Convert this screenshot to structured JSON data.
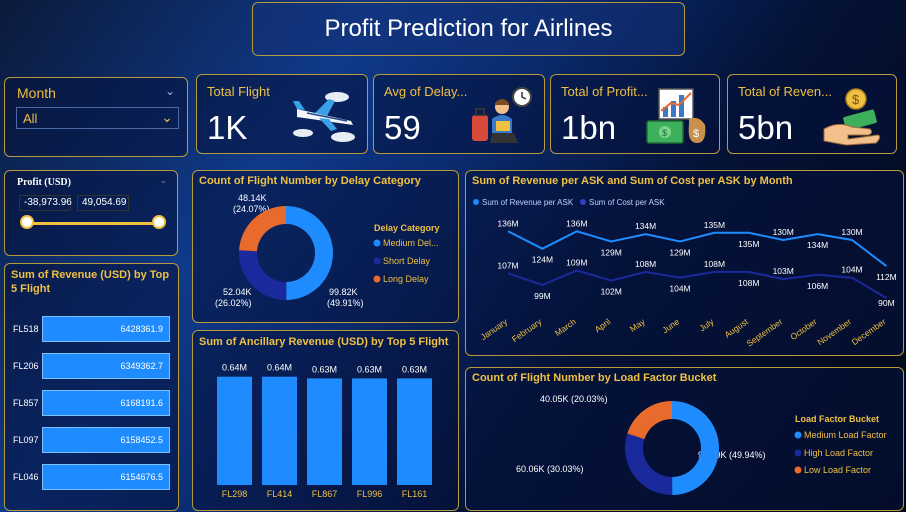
{
  "title": "Profit Prediction for Airlines",
  "month_slicer": {
    "label": "Month",
    "selected": "All"
  },
  "kpis": [
    {
      "title": "Total Flight",
      "value": "1K",
      "icon": "airplane-icon"
    },
    {
      "title": "Avg of Delay...",
      "value": "59",
      "icon": "waiting-passenger-icon"
    },
    {
      "title": "Total of Profit...",
      "value": "1bn",
      "icon": "profit-chart-money-icon"
    },
    {
      "title": "Total of Reven...",
      "value": "5bn",
      "icon": "hand-money-icon"
    }
  ],
  "profit_slicer": {
    "label": "Profit (USD)",
    "min": "-38,973.96",
    "max": "49,054.69"
  },
  "revenue_top5": {
    "title": "Sum of Revenue (USD) by Top 5 Flight",
    "rows": [
      {
        "flight": "FL518",
        "value": "6428361.9",
        "num": 6428361.9
      },
      {
        "flight": "FL206",
        "value": "6349362.7",
        "num": 6349362.7
      },
      {
        "flight": "FL857",
        "value": "6168191.6",
        "num": 6168191.6
      },
      {
        "flight": "FL097",
        "value": "6158452.5",
        "num": 6158452.5
      },
      {
        "flight": "FL046",
        "value": "6154676.5",
        "num": 6154676.5
      }
    ]
  },
  "delay_chart": {
    "title": "Count of Flight Number by Delay Category",
    "legend_title": "Delay Category",
    "legend": [
      "Medium Del...",
      "Short Delay",
      "Long Delay"
    ],
    "labels": {
      "long": [
        "48.14K",
        "(24.07%)"
      ],
      "short": [
        "52.04K",
        "(26.02%)"
      ],
      "medium": [
        "99.82K",
        "(49.91%)"
      ]
    }
  },
  "ancillary_chart": {
    "title": "Sum of Ancillary Revenue (USD) by Top 5 Flight",
    "bars": [
      {
        "flight": "FL298",
        "label": "0.64M"
      },
      {
        "flight": "FL414",
        "label": "0.64M"
      },
      {
        "flight": "FL867",
        "label": "0.63M"
      },
      {
        "flight": "FL996",
        "label": "0.63M"
      },
      {
        "flight": "FL161",
        "label": "0.63M"
      }
    ]
  },
  "line_chart": {
    "title": "Sum of Revenue per ASK and Sum of Cost per ASK by Month",
    "legend": [
      "Sum of Revenue per ASK",
      "Sum of Cost per ASK"
    ],
    "months": [
      "January",
      "February",
      "March",
      "April",
      "May",
      "June",
      "July",
      "August",
      "September",
      "October",
      "November",
      "December"
    ],
    "revenue_labels": [
      "136M",
      "124M",
      "136M",
      "129M",
      "134M",
      "129M",
      "135M",
      "135M",
      "130M",
      "134M",
      "130M",
      "112M"
    ],
    "cost_labels": [
      "107M",
      "99M",
      "109M",
      "102M",
      "108M",
      "104M",
      "108M",
      "108M",
      "103M",
      "106M",
      "104M",
      "90M"
    ]
  },
  "load_chart": {
    "title": "Count of Flight Number by Load Factor Bucket",
    "legend_title": "Load Factor Bucket",
    "legend": [
      "Medium Load Factor",
      "High Load Factor",
      "Low Load Factor"
    ],
    "labels": {
      "low": "40.05K (20.03%)",
      "high": "60.06K (30.03%)",
      "medium": "99.89K (49.94%)"
    }
  },
  "chart_data": [
    {
      "type": "pie",
      "title": "Count of Flight Number by Delay Category",
      "categories": [
        "Medium Delay",
        "Short Delay",
        "Long Delay"
      ],
      "values": [
        99820,
        52040,
        48140
      ],
      "percent": [
        49.91,
        26.02,
        24.07
      ],
      "colors": [
        "#1e8cff",
        "#1a2a9c",
        "#e86a2c"
      ]
    },
    {
      "type": "bar",
      "title": "Sum of Revenue (USD) by Top 5 Flight",
      "categories": [
        "FL518",
        "FL206",
        "FL857",
        "FL097",
        "FL046"
      ],
      "values": [
        6428361.9,
        6349362.7,
        6168191.6,
        6158452.5,
        6154676.5
      ]
    },
    {
      "type": "bar",
      "title": "Sum of Ancillary Revenue (USD) by Top 5 Flight",
      "categories": [
        "FL298",
        "FL414",
        "FL867",
        "FL996",
        "FL161"
      ],
      "values": [
        640000,
        640000,
        630000,
        630000,
        630000
      ]
    },
    {
      "type": "line",
      "title": "Sum of Revenue per ASK and Sum of Cost per ASK by Month",
      "categories": [
        "January",
        "February",
        "March",
        "April",
        "May",
        "June",
        "July",
        "August",
        "September",
        "October",
        "November",
        "December"
      ],
      "series": [
        {
          "name": "Sum of Revenue per ASK",
          "values": [
            136,
            124,
            136,
            129,
            134,
            129,
            135,
            135,
            130,
            134,
            130,
            112
          ],
          "color": "#1e8cff"
        },
        {
          "name": "Sum of Cost per ASK",
          "values": [
            107,
            99,
            109,
            102,
            108,
            104,
            108,
            108,
            103,
            106,
            104,
            90
          ],
          "color": "#1a2a9c"
        }
      ]
    },
    {
      "type": "pie",
      "title": "Count of Flight Number by Load Factor Bucket",
      "categories": [
        "Medium Load Factor",
        "High Load Factor",
        "Low Load Factor"
      ],
      "values": [
        99890,
        60060,
        40050
      ],
      "percent": [
        49.94,
        30.03,
        20.03
      ],
      "colors": [
        "#1e8cff",
        "#1a2a9c",
        "#e86a2c"
      ]
    }
  ]
}
